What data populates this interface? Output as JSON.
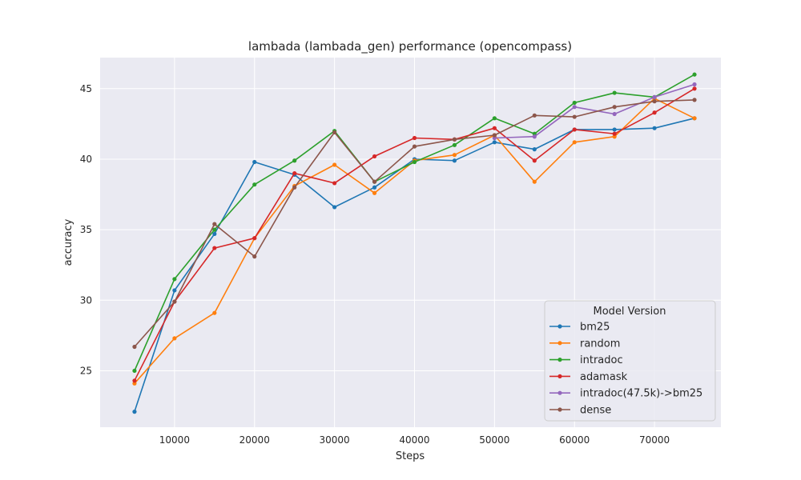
{
  "chart_data": {
    "type": "line",
    "title": "lambada (lambada_gen) performance (opencompass)",
    "xlabel": "Steps",
    "ylabel": "accuracy",
    "xlim": [
      700,
      78300
    ],
    "ylim": [
      21.0,
      47.2
    ],
    "xticks": [
      10000,
      20000,
      30000,
      40000,
      50000,
      60000,
      70000
    ],
    "yticks": [
      25,
      30,
      35,
      40,
      45
    ],
    "grid": true,
    "legend": {
      "title": "Model Version",
      "placement": "lower-right"
    },
    "series": [
      {
        "name": "bm25",
        "color": "#1f77b4",
        "x": [
          5000,
          10000,
          15000,
          20000,
          25000,
          30000,
          35000,
          40000,
          45000,
          50000,
          55000,
          60000,
          65000,
          70000,
          75000
        ],
        "values": [
          22.1,
          30.7,
          34.7,
          39.8,
          38.9,
          36.6,
          38.0,
          40.0,
          39.9,
          41.2,
          40.7,
          42.1,
          42.1,
          42.2,
          42.9
        ]
      },
      {
        "name": "random",
        "color": "#ff7f0e",
        "x": [
          5000,
          10000,
          15000,
          20000,
          25000,
          30000,
          35000,
          40000,
          45000,
          50000,
          55000,
          60000,
          65000,
          70000,
          75000
        ],
        "values": [
          24.1,
          27.3,
          29.1,
          34.4,
          38.1,
          39.6,
          37.6,
          39.9,
          40.3,
          41.7,
          38.4,
          41.2,
          41.6,
          44.3,
          42.9
        ]
      },
      {
        "name": "intradoc",
        "color": "#2ca02c",
        "x": [
          5000,
          10000,
          15000,
          20000,
          25000,
          30000,
          35000,
          40000,
          45000,
          50000,
          55000,
          60000,
          65000,
          70000,
          75000
        ],
        "values": [
          25.0,
          31.5,
          35.0,
          38.2,
          39.9,
          42.0,
          38.4,
          39.8,
          41.0,
          42.9,
          41.8,
          44.0,
          44.7,
          44.4,
          46.0
        ]
      },
      {
        "name": "adamask",
        "color": "#d62728",
        "x": [
          5000,
          10000,
          15000,
          20000,
          25000,
          30000,
          35000,
          40000,
          45000,
          50000,
          55000,
          60000,
          65000,
          70000,
          75000
        ],
        "values": [
          24.3,
          29.9,
          33.7,
          34.4,
          39.0,
          38.3,
          40.2,
          41.5,
          41.4,
          42.2,
          39.9,
          42.1,
          41.8,
          43.3,
          45.0
        ]
      },
      {
        "name": "intradoc(47.5k)->bm25",
        "color": "#9467bd",
        "x": [
          50000,
          55000,
          60000,
          65000,
          70000,
          75000
        ],
        "values": [
          41.5,
          41.6,
          43.7,
          43.2,
          44.4,
          45.3
        ]
      },
      {
        "name": "dense",
        "color": "#8c564b",
        "x": [
          5000,
          10000,
          15000,
          20000,
          25000,
          30000,
          35000,
          40000,
          45000,
          50000,
          55000,
          60000,
          65000,
          70000,
          75000
        ],
        "values": [
          26.7,
          29.9,
          35.4,
          33.1,
          38.0,
          41.9,
          38.4,
          40.9,
          41.4,
          41.7,
          43.1,
          43.0,
          43.7,
          44.1,
          44.2
        ]
      }
    ]
  }
}
